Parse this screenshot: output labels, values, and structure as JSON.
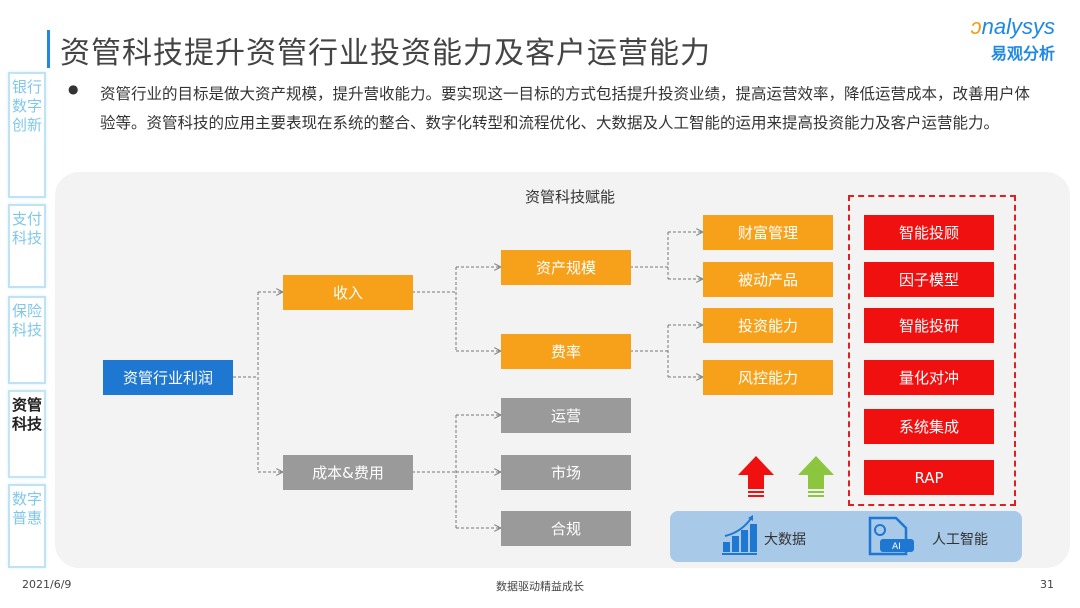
{
  "header": {
    "title": "资管科技提升资管行业投资能力及客户运营能力",
    "logo_en": "nalysys",
    "logo_cn": "易观分析"
  },
  "intro": "资管行业的目标是做大资产规模，提升营收能力。要实现这一目标的方式包括提升投资业绩，提高运营效率，降低运营成本，改善用户体验等。资管科技的应用主要表现在系统的整合、数字化转型和流程优化、大数据及人工智能的运用来提高投资能力及客户运营能力。",
  "sidebar": [
    {
      "label": "银行数字创新",
      "active": false
    },
    {
      "label": "支付科技",
      "active": false
    },
    {
      "label": "保险科技",
      "active": false
    },
    {
      "label": "资管科技",
      "active": true
    },
    {
      "label": "数字普惠",
      "active": false
    }
  ],
  "diagram": {
    "label": "资管科技赋能",
    "root": "资管行业利润",
    "level1": [
      "收入",
      "成本&费用"
    ],
    "revenue_children": [
      "资产规模",
      "费率"
    ],
    "cost_children": [
      "运营",
      "市场",
      "合规"
    ],
    "outcomes": [
      "财富管理",
      "被动产品",
      "投资能力",
      "风控能力"
    ],
    "tech": [
      "智能投顾",
      "因子模型",
      "智能投研",
      "量化对冲",
      "系统集成",
      "RAP"
    ],
    "foundation": [
      {
        "label": "大数据",
        "icon": "bar-chart-growth-icon"
      },
      {
        "label": "人工智能",
        "icon": "ai-document-icon"
      }
    ],
    "colors": {
      "root": "#1e78d2",
      "revenue": "#f7a11a",
      "cost": "#9a9a9a",
      "tech": "#f01010",
      "arrow_red": "#f01010",
      "arrow_green": "#8cc63f"
    }
  },
  "footer": {
    "date": "2021/6/9",
    "center": "数据驱动精益成长",
    "page": "31"
  }
}
